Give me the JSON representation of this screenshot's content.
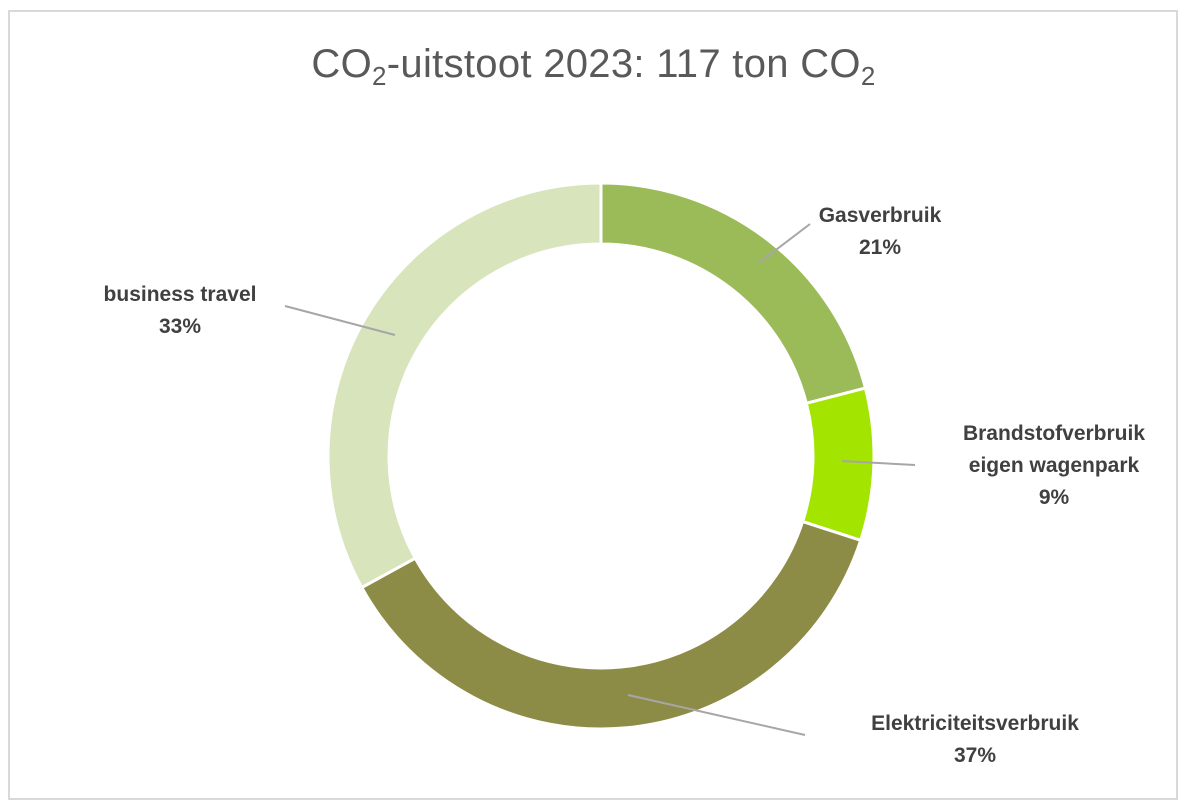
{
  "chart_data": {
    "type": "pie",
    "title_main": "CO",
    "title_sub1": "2",
    "title_mid": "-uitstoot 2023: 117 ton CO",
    "title_sub2": "2",
    "series": [
      {
        "label_lines": [
          "Gasverbruik"
        ],
        "pct_label": "21%",
        "value": 21,
        "color": "#9bbb59"
      },
      {
        "label_lines": [
          "Brandstofverbruik",
          "eigen wagenpark"
        ],
        "pct_label": "9%",
        "value": 9,
        "color": "#a3e400"
      },
      {
        "label_lines": [
          "Elektriciteitsverbruik"
        ],
        "pct_label": "37%",
        "value": 37,
        "color": "#8d8c47"
      },
      {
        "label_lines": [
          "business travel"
        ],
        "pct_label": "33%",
        "value": 33,
        "color": "#d8e4bc"
      }
    ]
  }
}
